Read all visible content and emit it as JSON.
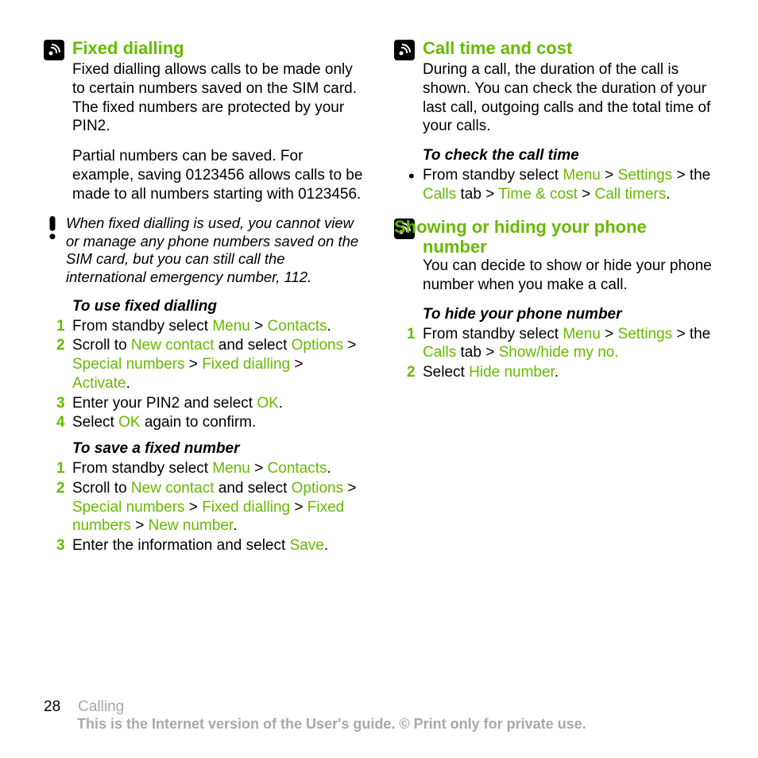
{
  "colors": {
    "green": "#67b900",
    "text": "#000000",
    "muted": "#a8a8a8",
    "background": "#ffffff"
  },
  "left": {
    "section1": {
      "title": "Fixed dialling",
      "p1": "Fixed dialling allows calls to be made only to certain numbers saved on the SIM card. The fixed numbers are protected by your PIN2.",
      "p2": "Partial numbers can be saved. For example, saving 0123456 allows calls to be made to all numbers starting with 0123456.",
      "note": "When fixed dialling is used, you cannot view or manage any phone numbers saved on the SIM card, but you can still call the international emergency number, 112.",
      "sub1": "To use fixed dialling",
      "steps1": [
        {
          "pre": "From standby select ",
          "g1": "Menu",
          "mid1": " > ",
          "g2": "Contacts",
          "post": "."
        },
        {
          "pre": "Scroll to ",
          "g1": "New contact",
          "mid1": " and select ",
          "g2": "Options",
          "mid2": " > ",
          "g3": "Special numbers",
          "mid3": " > ",
          "g4": "Fixed dialling",
          "mid4": " > ",
          "g5": "Activate",
          "post": "."
        },
        {
          "pre": "Enter your PIN2 and select ",
          "g1": "OK",
          "post": "."
        },
        {
          "pre": "Select ",
          "g1": "OK",
          "post": " again to confirm."
        }
      ],
      "sub2": "To save a fixed number",
      "steps2": [
        {
          "pre": "From standby select ",
          "g1": "Menu",
          "mid1": " > ",
          "g2": "Contacts",
          "post": "."
        },
        {
          "pre": "Scroll to ",
          "g1": "New contact",
          "mid1": " and select ",
          "g2": "Options",
          "mid2": " > ",
          "g3": "Special numbers",
          "mid3": " > ",
          "g4": "Fixed dialling",
          "mid4": " > ",
          "g5": "Fixed numbers",
          "mid5": " > ",
          "g6": "New number",
          "post": "."
        },
        {
          "pre": "Enter the information and select ",
          "g1": "Save",
          "post": "."
        }
      ]
    }
  },
  "right": {
    "section1": {
      "title": "Call time and cost",
      "p1": "During a call, the duration of the call is shown. You can check the duration of your last call, outgoing calls and the total time of your calls.",
      "sub1": "To check the call time",
      "bullet": {
        "pre": "From standby select ",
        "g1": "Menu",
        "mid1": " > ",
        "g2": "Settings",
        "mid2": " > the ",
        "g3": "Calls",
        "mid3": " tab > ",
        "g4": "Time & cost",
        "mid4": " > ",
        "g5": "Call timers",
        "post": "."
      }
    },
    "section2": {
      "title": "Showing or hiding your phone number",
      "p1": "You can decide to show or hide your phone number when you make a call.",
      "sub1": "To hide your phone number",
      "steps": [
        {
          "pre": "From standby select ",
          "g1": "Menu",
          "mid1": " > ",
          "g2": "Settings",
          "mid2": " > the ",
          "g3": "Calls",
          "mid3": " tab > ",
          "g4": "Show/hide my no.",
          "post": ""
        },
        {
          "pre": "Select ",
          "g1": "Hide number",
          "post": "."
        }
      ]
    }
  },
  "footer": {
    "page": "28",
    "section": "Calling",
    "copy": "This is the Internet version of the User's guide. © Print only for private use."
  }
}
